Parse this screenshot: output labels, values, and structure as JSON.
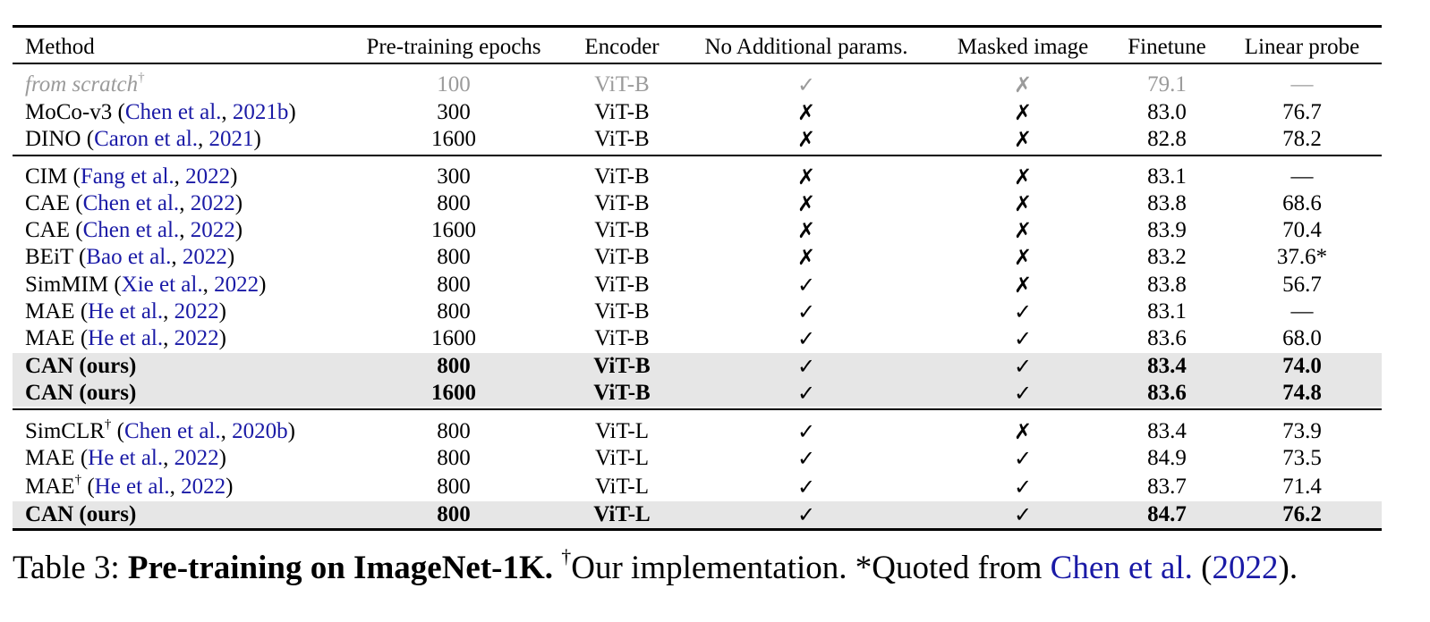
{
  "table": {
    "headers": [
      "Method",
      "Pre-training epochs",
      "Encoder",
      "No Additional params.",
      "Masked image",
      "Finetune",
      "Linear probe"
    ],
    "rows": [
      {
        "method": "from scratch",
        "sup": "†",
        "cite": "",
        "year": "",
        "epochs": "100",
        "encoder": "ViT-B",
        "no_params": "✓",
        "masked": "✗",
        "finetune": "79.1",
        "linear": "—",
        "style": "gray"
      },
      {
        "method": "MoCo-v3",
        "sup": "",
        "cite": "Chen et al.",
        "year": "2021b",
        "epochs": "300",
        "encoder": "ViT-B",
        "no_params": "✗",
        "masked": "✗",
        "finetune": "83.0",
        "linear": "76.7",
        "style": ""
      },
      {
        "method": "DINO",
        "sup": "",
        "cite": "Caron et al.",
        "year": "2021",
        "epochs": "1600",
        "encoder": "ViT-B",
        "no_params": "✗",
        "masked": "✗",
        "finetune": "82.8",
        "linear": "78.2",
        "style": ""
      },
      {
        "method": "CIM",
        "sup": "",
        "cite": "Fang et al.",
        "year": "2022",
        "epochs": "300",
        "encoder": "ViT-B",
        "no_params": "✗",
        "masked": "✗",
        "finetune": "83.1",
        "linear": "—",
        "style": ""
      },
      {
        "method": "CAE",
        "sup": "",
        "cite": "Chen et al.",
        "year": "2022",
        "epochs": "800",
        "encoder": "ViT-B",
        "no_params": "✗",
        "masked": "✗",
        "finetune": "83.8",
        "linear": "68.6",
        "style": ""
      },
      {
        "method": "CAE",
        "sup": "",
        "cite": "Chen et al.",
        "year": "2022",
        "epochs": "1600",
        "encoder": "ViT-B",
        "no_params": "✗",
        "masked": "✗",
        "finetune": "83.9",
        "linear": "70.4",
        "style": ""
      },
      {
        "method": "BEiT",
        "sup": "",
        "cite": "Bao et al.",
        "year": "2022",
        "epochs": "800",
        "encoder": "ViT-B",
        "no_params": "✗",
        "masked": "✗",
        "finetune": "83.2",
        "linear": "37.6*",
        "style": ""
      },
      {
        "method": "SimMIM",
        "sup": "",
        "cite": "Xie et al.",
        "year": "2022",
        "epochs": "800",
        "encoder": "ViT-B",
        "no_params": "✓",
        "masked": "✗",
        "finetune": "83.8",
        "linear": "56.7",
        "style": ""
      },
      {
        "method": "MAE",
        "sup": "",
        "cite": "He et al.",
        "year": "2022",
        "epochs": "800",
        "encoder": "ViT-B",
        "no_params": "✓",
        "masked": "✓",
        "finetune": "83.1",
        "linear": "—",
        "style": ""
      },
      {
        "method": "MAE",
        "sup": "",
        "cite": "He et al.",
        "year": "2022",
        "epochs": "1600",
        "encoder": "ViT-B",
        "no_params": "✓",
        "masked": "✓",
        "finetune": "83.6",
        "linear": "68.0",
        "style": ""
      },
      {
        "method": "CAN (ours)",
        "sup": "",
        "cite": "",
        "year": "",
        "epochs": "800",
        "encoder": "ViT-B",
        "no_params": "✓",
        "masked": "✓",
        "finetune": "83.4",
        "linear": "74.0",
        "style": "ours"
      },
      {
        "method": "CAN (ours)",
        "sup": "",
        "cite": "",
        "year": "",
        "epochs": "1600",
        "encoder": "ViT-B",
        "no_params": "✓",
        "masked": "✓",
        "finetune": "83.6",
        "linear": "74.8",
        "style": "ours"
      },
      {
        "method": "SimCLR",
        "sup": "†",
        "cite": "Chen et al.",
        "year": "2020b",
        "epochs": "800",
        "encoder": "ViT-L",
        "no_params": "✓",
        "masked": "✗",
        "finetune": "83.4",
        "linear": "73.9",
        "style": ""
      },
      {
        "method": "MAE",
        "sup": "",
        "cite": "He et al.",
        "year": "2022",
        "epochs": "800",
        "encoder": "ViT-L",
        "no_params": "✓",
        "masked": "✓",
        "finetune": "84.9",
        "linear": "73.5",
        "style": ""
      },
      {
        "method": "MAE",
        "sup": "†",
        "cite": "He et al.",
        "year": "2022",
        "epochs": "800",
        "encoder": "ViT-L",
        "no_params": "✓",
        "masked": "✓",
        "finetune": "83.7",
        "linear": "71.4",
        "style": ""
      },
      {
        "method": "CAN (ours)",
        "sup": "",
        "cite": "",
        "year": "",
        "epochs": "800",
        "encoder": "ViT-L",
        "no_params": "✓",
        "masked": "✓",
        "finetune": "84.7",
        "linear": "76.2",
        "style": "ours"
      }
    ]
  },
  "caption": {
    "label": "Table 3: ",
    "bold": "Pre-training on ImageNet-1K.",
    "dagger": "†",
    "text1": "Our implementation. *Quoted from ",
    "cite": "Chen et al.",
    "year": "2022",
    "end": "."
  },
  "colors": {
    "citation": "#1a1aa6",
    "highlight_row": "#e6e6e6",
    "baseline_gray": "#9b9b9b"
  }
}
